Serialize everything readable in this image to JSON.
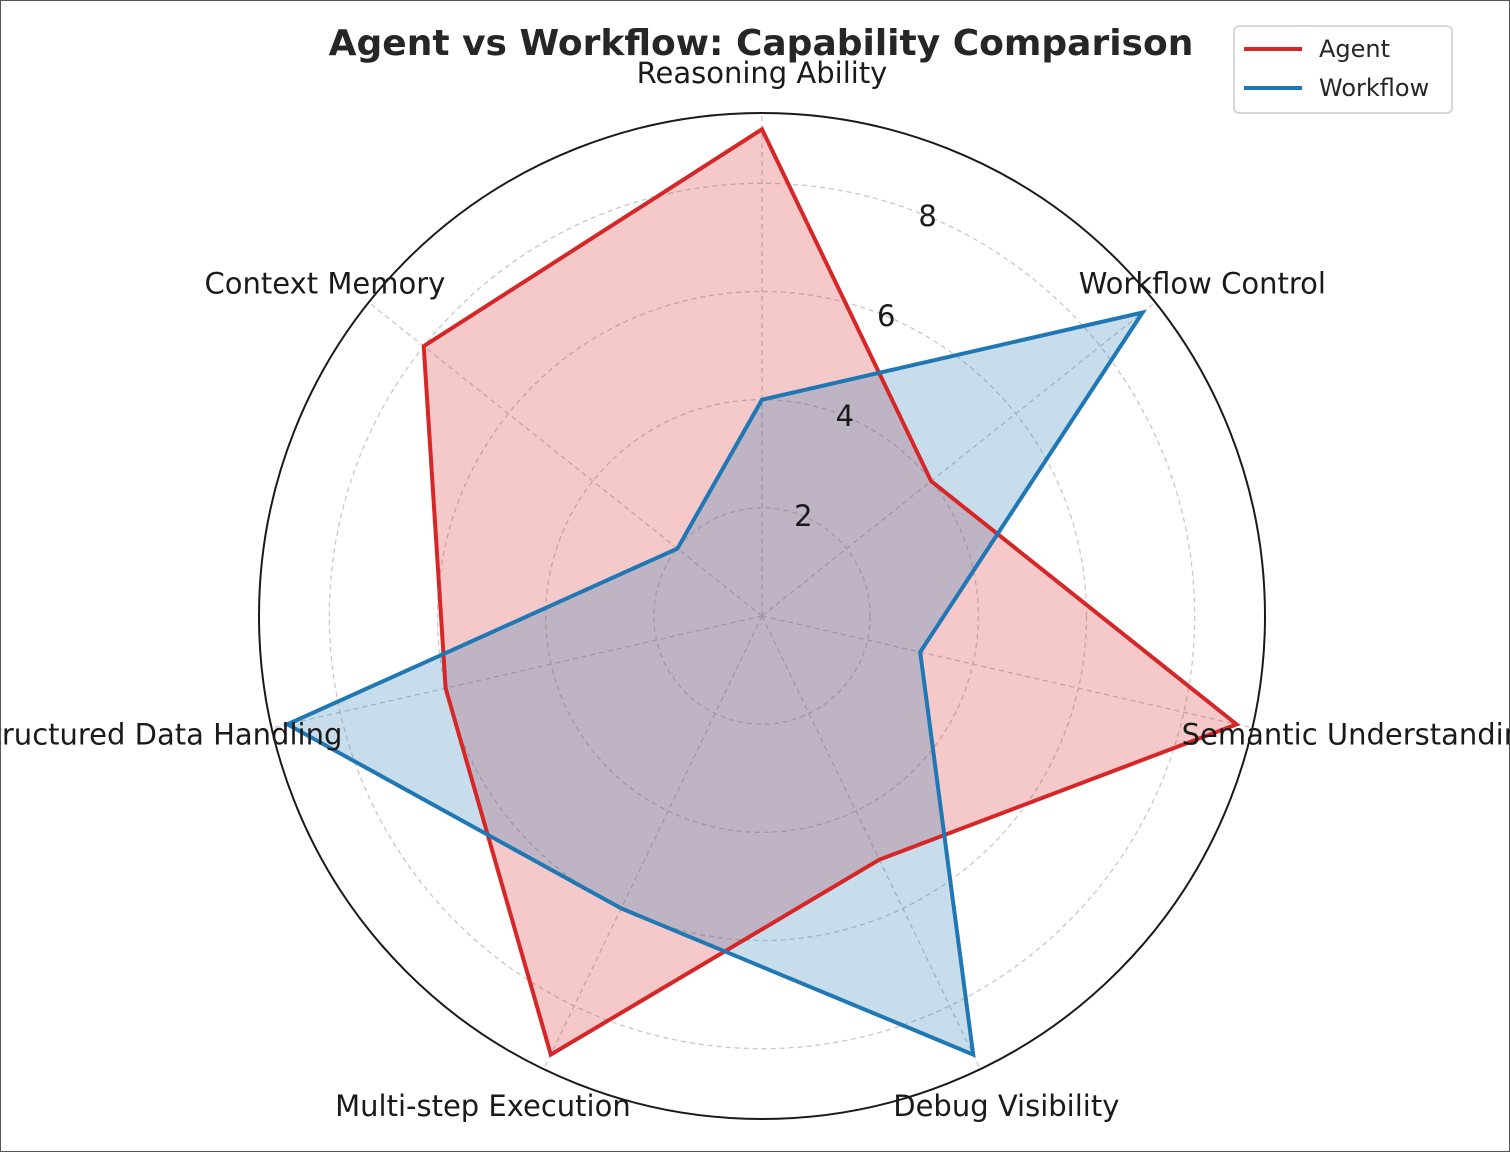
{
  "chart_data": {
    "type": "radar",
    "title": "Agent vs Workflow: Capability Comparison",
    "categories": [
      "Reasoning Ability",
      "Workflow Control",
      "Semantic Understanding",
      "Debug Visibility",
      "Multi-step Execution",
      "Structured Data Handling",
      "Context Memory"
    ],
    "series": [
      {
        "name": "Agent",
        "color": "#d62728",
        "values": [
          9,
          4,
          9,
          5,
          9,
          6,
          8
        ]
      },
      {
        "name": "Workflow",
        "color": "#1f77b4",
        "values": [
          4,
          9,
          3,
          9,
          6,
          9,
          2
        ]
      }
    ],
    "r_ticks": [
      "2",
      "4",
      "6",
      "8"
    ],
    "r_tick_values": [
      2,
      4,
      6,
      8
    ],
    "rlim": [
      0,
      9.3
    ],
    "grid": true,
    "legend_position": "top-right"
  }
}
